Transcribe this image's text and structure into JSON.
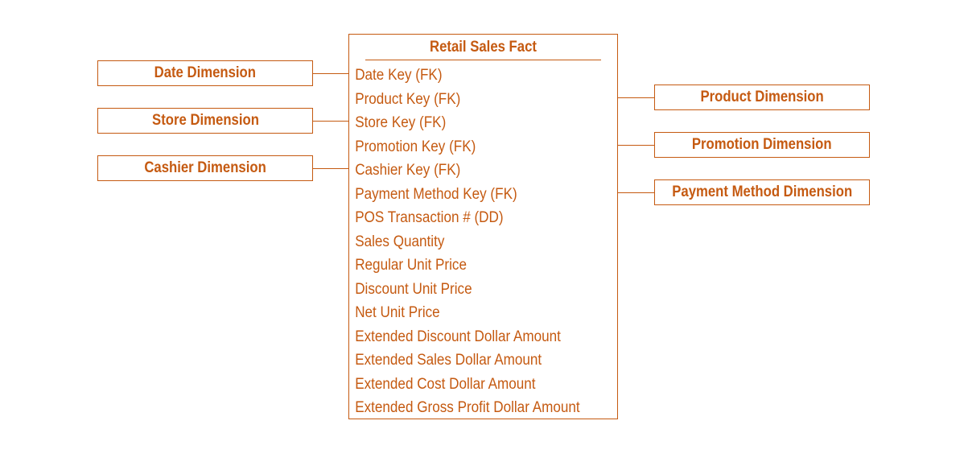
{
  "fact": {
    "title": "Retail Sales Fact",
    "rows": [
      "Date Key (FK)",
      "Product Key (FK)",
      "Store Key (FK)",
      "Promotion Key (FK)",
      "Cashier Key (FK)",
      "Payment Method Key (FK)",
      "POS Transaction # (DD)",
      "Sales Quantity",
      "Regular Unit Price",
      "Discount Unit Price",
      "Net Unit Price",
      "Extended Discount Dollar Amount",
      "Extended Sales Dollar Amount",
      "Extended Cost Dollar Amount",
      "Extended Gross Profit Dollar Amount"
    ]
  },
  "dimensions": {
    "date": "Date Dimension",
    "store": "Store Dimension",
    "cashier": "Cashier Dimension",
    "product": "Product Dimension",
    "promotion": "Promotion Dimension",
    "payment_method": "Payment Method Dimension"
  },
  "colors": {
    "accent": "#c55a11",
    "background": "#ffffff"
  }
}
